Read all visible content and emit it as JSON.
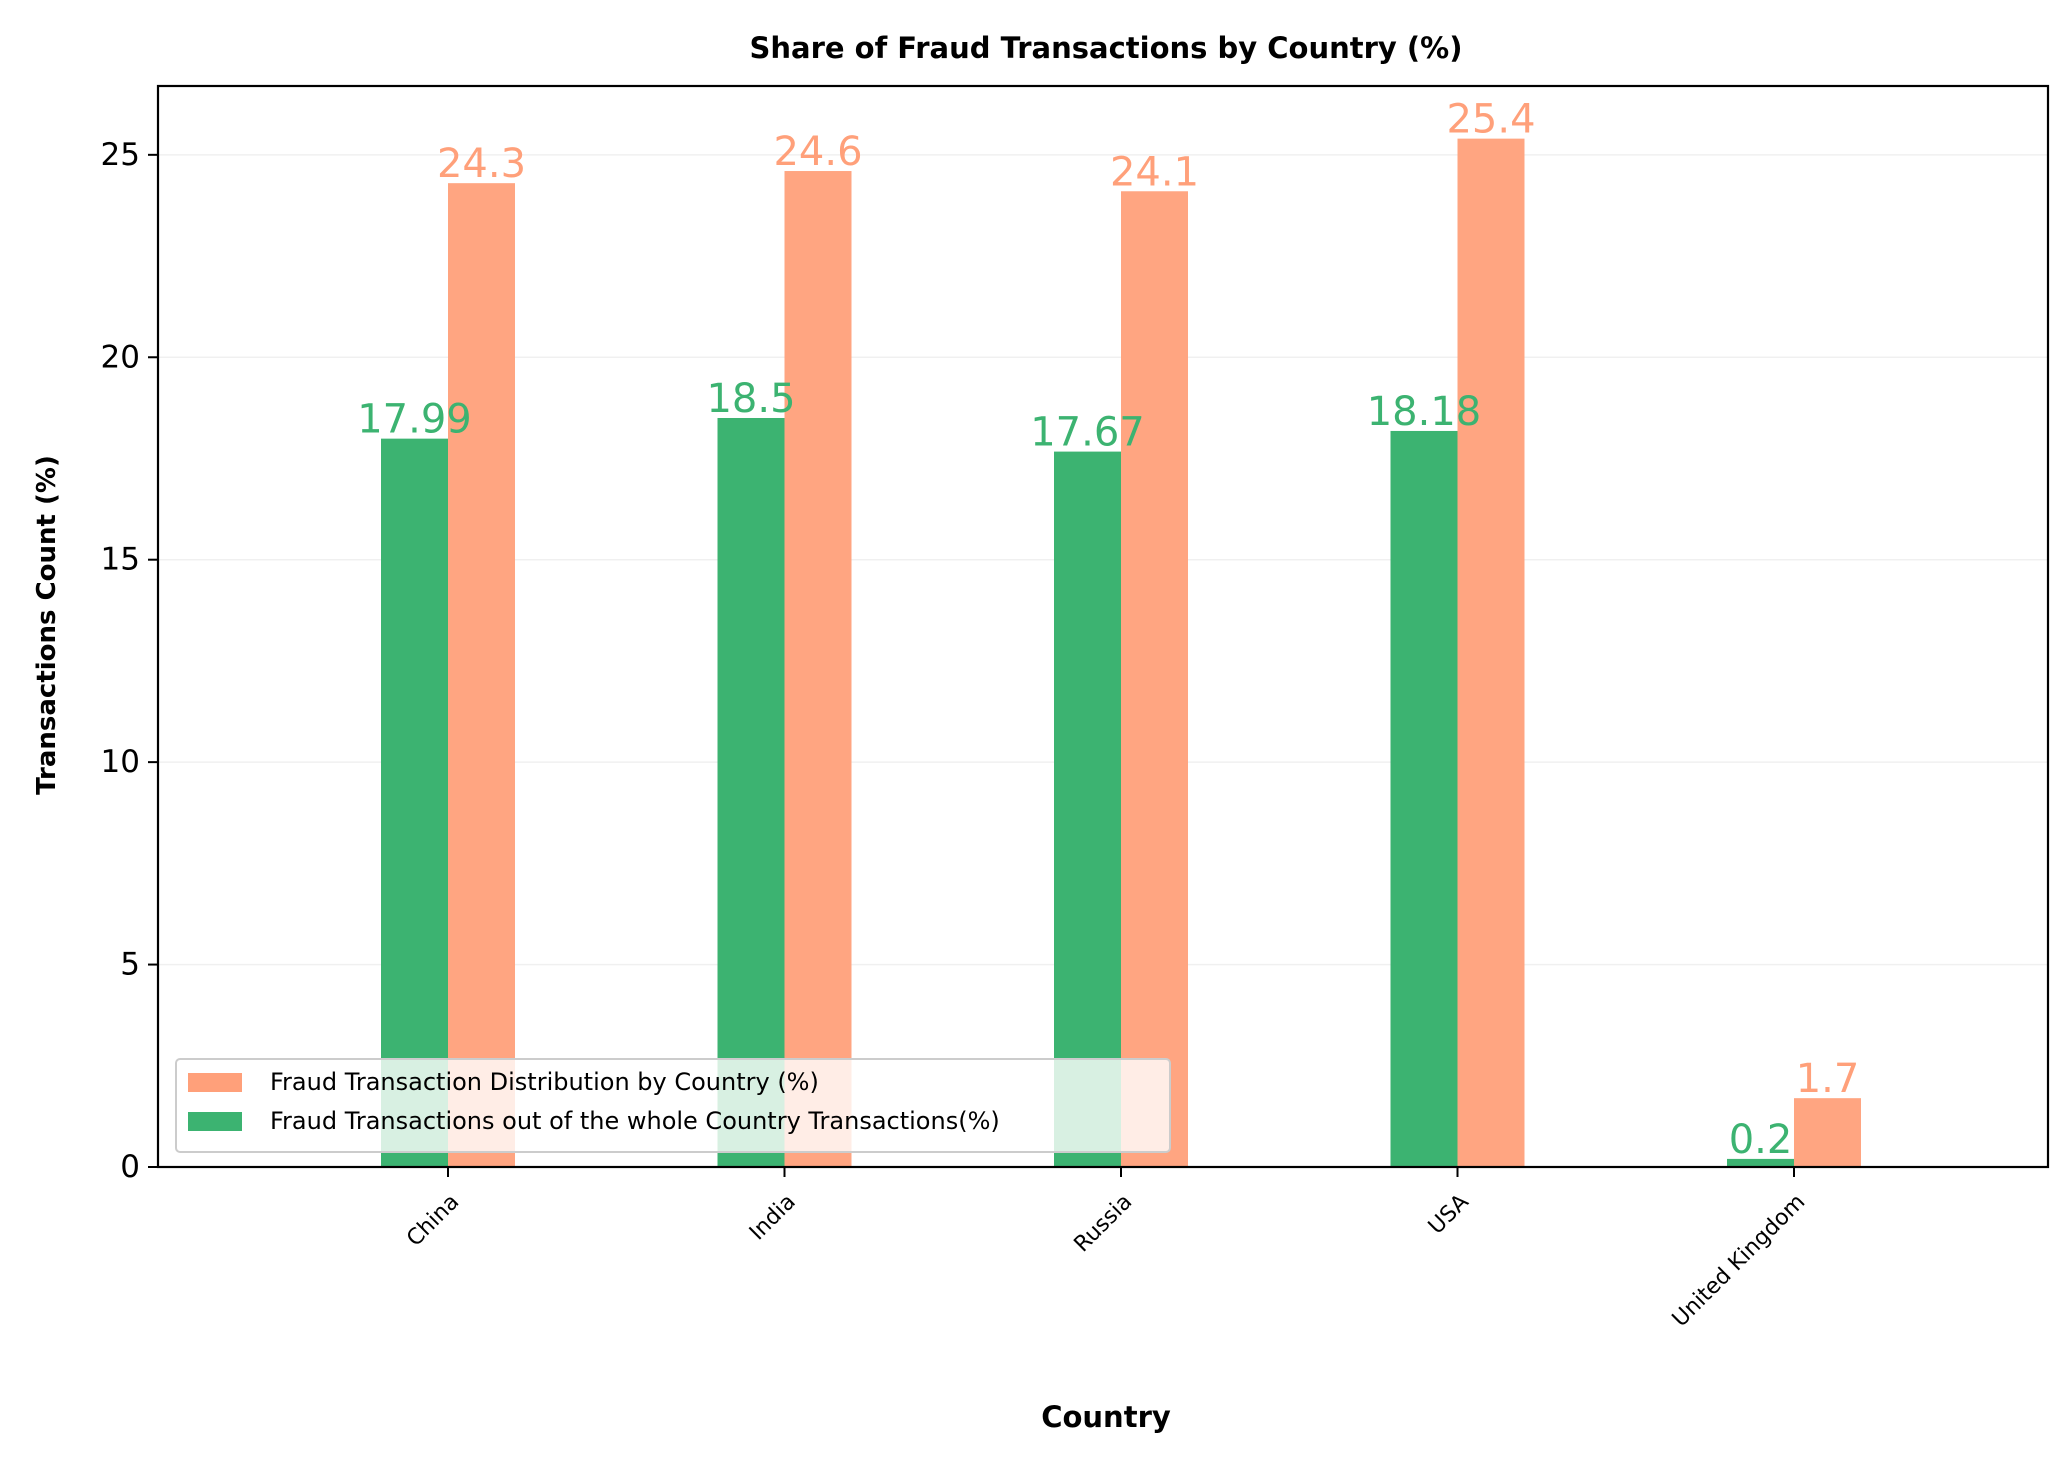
{
  "chart_data": {
    "type": "bar",
    "title": "Share of Fraud Transactions by Country (%)",
    "xlabel": "Country",
    "ylabel": "Transactions Count (%)",
    "ylim": [
      0,
      26.7
    ],
    "yticks": [
      0,
      5,
      10,
      15,
      20,
      25
    ],
    "grid": true,
    "legend_position": "lower-left",
    "categories": [
      "China",
      "India",
      "Russia",
      "USA",
      "United Kingdom"
    ],
    "series": [
      {
        "name": "Fraud Transactions out of the whole Country Transactions(%)",
        "values": [
          17.99,
          18.5,
          17.67,
          18.18,
          0.2
        ],
        "labels": [
          "17.99",
          "18.5",
          "17.67",
          "18.18",
          "0.2"
        ],
        "color": "#3cb371"
      },
      {
        "name": "Fraud Transaction Distribution by Country (%)",
        "values": [
          24.3,
          24.6,
          24.1,
          25.4,
          1.7
        ],
        "labels": [
          "24.3",
          "24.6",
          "24.1",
          "25.4",
          "1.7"
        ],
        "color": "#ffa07a"
      }
    ],
    "legend_order": [
      1,
      0
    ]
  }
}
